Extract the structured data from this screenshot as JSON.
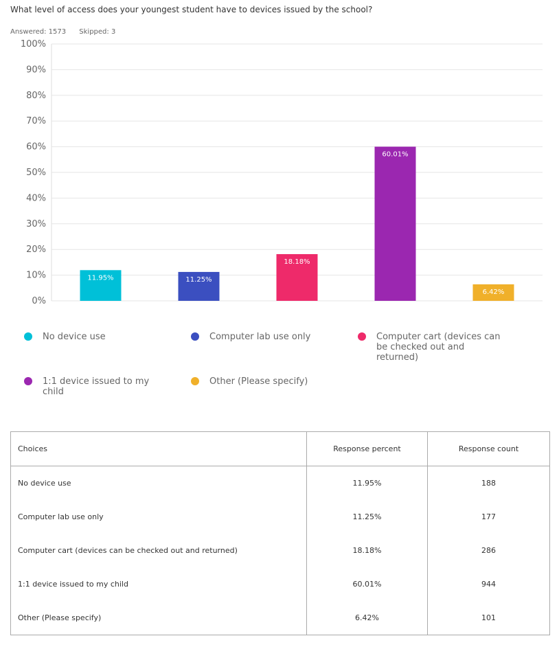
{
  "question": "What level of access does your youngest student have to devices issued by the school?",
  "stats": {
    "answered": "Answered: 1573",
    "skipped": "Skipped: 3"
  },
  "chart_data": {
    "type": "bar",
    "categories": [
      "No device use",
      "Computer lab use only",
      "Computer cart (devices can be checked out and returned)",
      "1:1 device issued to my child",
      "Other (Please specify)"
    ],
    "values": [
      11.95,
      11.25,
      18.18,
      60.01,
      6.42
    ],
    "value_labels": [
      "11.95%",
      "11.25%",
      "18.18%",
      "60.01%",
      "6.42%"
    ],
    "colors": [
      "#00c0d8",
      "#3b4fc0",
      "#ee2a6a",
      "#9b27b0",
      "#f0b02a"
    ],
    "ylim": [
      0,
      100
    ],
    "yticks": [
      "0%",
      "10%",
      "20%",
      "30%",
      "40%",
      "50%",
      "60%",
      "70%",
      "80%",
      "90%",
      "100%"
    ],
    "grid": true,
    "legend_position": "bottom"
  },
  "legend": [
    {
      "label": "No device use",
      "color": "#00c0d8"
    },
    {
      "label": "Computer lab use only",
      "color": "#3b4fc0"
    },
    {
      "label": "Computer cart (devices can be checked out and returned)",
      "color": "#ee2a6a"
    },
    {
      "label": "1:1 device issued to my child",
      "color": "#9b27b0"
    },
    {
      "label": "Other (Please specify)",
      "color": "#f0b02a"
    }
  ],
  "table": {
    "headers": [
      "Choices",
      "Response percent",
      "Response count"
    ],
    "rows": [
      [
        "No device use",
        "11.95%",
        "188"
      ],
      [
        "Computer lab use only",
        "11.25%",
        "177"
      ],
      [
        "Computer cart (devices can be checked out and returned)",
        "18.18%",
        "286"
      ],
      [
        "1:1 device issued to my child",
        "60.01%",
        "944"
      ],
      [
        "Other (Please specify)",
        "6.42%",
        "101"
      ]
    ]
  }
}
